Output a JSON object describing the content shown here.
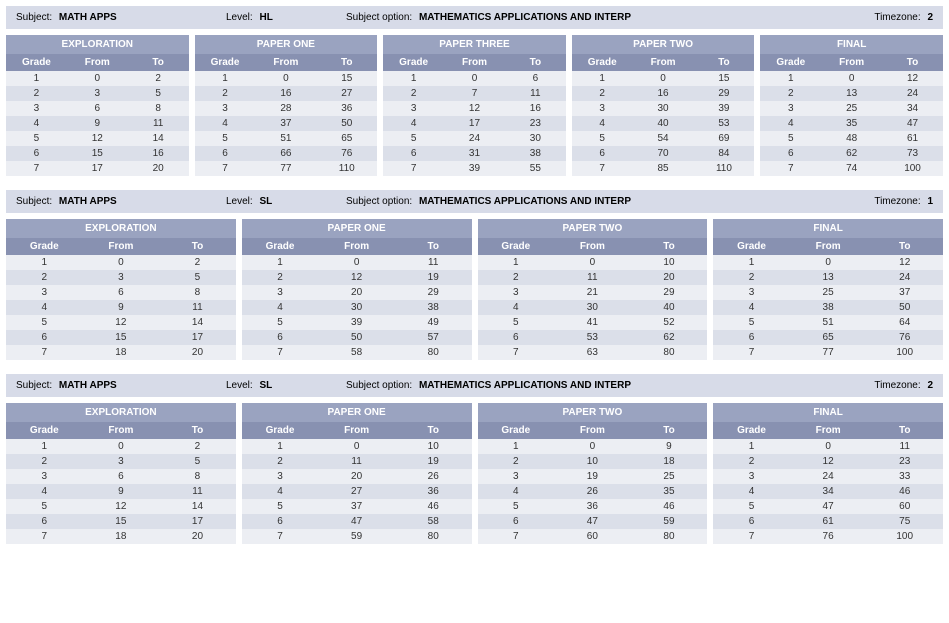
{
  "labels": {
    "subject": "Subject:",
    "level": "Level:",
    "option": "Subject option:",
    "timezone": "Timezone:"
  },
  "columns": [
    "Grade",
    "From",
    "To"
  ],
  "colors": {
    "header_bar_bg": "#d7dbe8",
    "panel_title_bg": "#9aa3c0",
    "col_header_bg": "#8891b1",
    "row_odd_bg": "#eceef3",
    "row_even_bg": "#dbdfe9",
    "text": "#000000"
  },
  "sections": [
    {
      "subject": "MATH APPS",
      "level": "HL",
      "option": "MATHEMATICS APPLICATIONS AND INTERP",
      "timezone": "2",
      "panels": [
        {
          "title": "EXPLORATION",
          "rows": [
            [
              1,
              0,
              2
            ],
            [
              2,
              3,
              5
            ],
            [
              3,
              6,
              8
            ],
            [
              4,
              9,
              11
            ],
            [
              5,
              12,
              14
            ],
            [
              6,
              15,
              16
            ],
            [
              7,
              17,
              20
            ]
          ]
        },
        {
          "title": "PAPER ONE",
          "rows": [
            [
              1,
              0,
              15
            ],
            [
              2,
              16,
              27
            ],
            [
              3,
              28,
              36
            ],
            [
              4,
              37,
              50
            ],
            [
              5,
              51,
              65
            ],
            [
              6,
              66,
              76
            ],
            [
              7,
              77,
              110
            ]
          ]
        },
        {
          "title": "PAPER THREE",
          "rows": [
            [
              1,
              0,
              6
            ],
            [
              2,
              7,
              11
            ],
            [
              3,
              12,
              16
            ],
            [
              4,
              17,
              23
            ],
            [
              5,
              24,
              30
            ],
            [
              6,
              31,
              38
            ],
            [
              7,
              39,
              55
            ]
          ]
        },
        {
          "title": "PAPER TWO",
          "rows": [
            [
              1,
              0,
              15
            ],
            [
              2,
              16,
              29
            ],
            [
              3,
              30,
              39
            ],
            [
              4,
              40,
              53
            ],
            [
              5,
              54,
              69
            ],
            [
              6,
              70,
              84
            ],
            [
              7,
              85,
              110
            ]
          ]
        },
        {
          "title": "FINAL",
          "rows": [
            [
              1,
              0,
              12
            ],
            [
              2,
              13,
              24
            ],
            [
              3,
              25,
              34
            ],
            [
              4,
              35,
              47
            ],
            [
              5,
              48,
              61
            ],
            [
              6,
              62,
              73
            ],
            [
              7,
              74,
              100
            ]
          ]
        }
      ]
    },
    {
      "subject": "MATH APPS",
      "level": "SL",
      "option": "MATHEMATICS APPLICATIONS AND INTERP",
      "timezone": "1",
      "panels": [
        {
          "title": "EXPLORATION",
          "rows": [
            [
              1,
              0,
              2
            ],
            [
              2,
              3,
              5
            ],
            [
              3,
              6,
              8
            ],
            [
              4,
              9,
              11
            ],
            [
              5,
              12,
              14
            ],
            [
              6,
              15,
              17
            ],
            [
              7,
              18,
              20
            ]
          ]
        },
        {
          "title": "PAPER ONE",
          "rows": [
            [
              1,
              0,
              11
            ],
            [
              2,
              12,
              19
            ],
            [
              3,
              20,
              29
            ],
            [
              4,
              30,
              38
            ],
            [
              5,
              39,
              49
            ],
            [
              6,
              50,
              57
            ],
            [
              7,
              58,
              80
            ]
          ]
        },
        {
          "title": "PAPER TWO",
          "rows": [
            [
              1,
              0,
              10
            ],
            [
              2,
              11,
              20
            ],
            [
              3,
              21,
              29
            ],
            [
              4,
              30,
              40
            ],
            [
              5,
              41,
              52
            ],
            [
              6,
              53,
              62
            ],
            [
              7,
              63,
              80
            ]
          ]
        },
        {
          "title": "FINAL",
          "rows": [
            [
              1,
              0,
              12
            ],
            [
              2,
              13,
              24
            ],
            [
              3,
              25,
              37
            ],
            [
              4,
              38,
              50
            ],
            [
              5,
              51,
              64
            ],
            [
              6,
              65,
              76
            ],
            [
              7,
              77,
              100
            ]
          ]
        }
      ]
    },
    {
      "subject": "MATH APPS",
      "level": "SL",
      "option": "MATHEMATICS APPLICATIONS AND INTERP",
      "timezone": "2",
      "panels": [
        {
          "title": "EXPLORATION",
          "rows": [
            [
              1,
              0,
              2
            ],
            [
              2,
              3,
              5
            ],
            [
              3,
              6,
              8
            ],
            [
              4,
              9,
              11
            ],
            [
              5,
              12,
              14
            ],
            [
              6,
              15,
              17
            ],
            [
              7,
              18,
              20
            ]
          ]
        },
        {
          "title": "PAPER ONE",
          "rows": [
            [
              1,
              0,
              10
            ],
            [
              2,
              11,
              19
            ],
            [
              3,
              20,
              26
            ],
            [
              4,
              27,
              36
            ],
            [
              5,
              37,
              46
            ],
            [
              6,
              47,
              58
            ],
            [
              7,
              59,
              80
            ]
          ]
        },
        {
          "title": "PAPER TWO",
          "rows": [
            [
              1,
              0,
              9
            ],
            [
              2,
              10,
              18
            ],
            [
              3,
              19,
              25
            ],
            [
              4,
              26,
              35
            ],
            [
              5,
              36,
              46
            ],
            [
              6,
              47,
              59
            ],
            [
              7,
              60,
              80
            ]
          ]
        },
        {
          "title": "FINAL",
          "rows": [
            [
              1,
              0,
              11
            ],
            [
              2,
              12,
              23
            ],
            [
              3,
              24,
              33
            ],
            [
              4,
              34,
              46
            ],
            [
              5,
              47,
              60
            ],
            [
              6,
              61,
              75
            ],
            [
              7,
              76,
              100
            ]
          ]
        }
      ]
    }
  ]
}
